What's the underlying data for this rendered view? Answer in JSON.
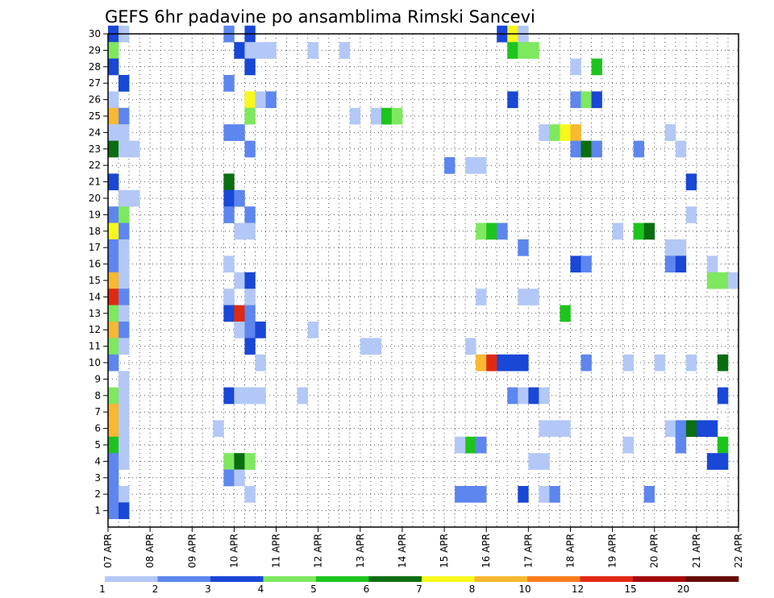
{
  "chart_data": {
    "type": "heatmap",
    "title": "GEFS 6hr padavine po ansamblima Rimski Sancevi",
    "y_ticks": [
      1,
      2,
      3,
      4,
      5,
      6,
      7,
      8,
      9,
      10,
      11,
      12,
      13,
      14,
      15,
      16,
      17,
      18,
      19,
      20,
      21,
      22,
      23,
      24,
      25,
      26,
      27,
      28,
      29,
      30
    ],
    "ylim": [
      0,
      30
    ],
    "x_ticks": [
      {
        "label": "07 APR",
        "day": 0
      },
      {
        "label": "08 APR",
        "day": 1
      },
      {
        "label": "09 APR",
        "day": 2
      },
      {
        "label": "10 APR",
        "day": 3
      },
      {
        "label": "11 APR",
        "day": 4
      },
      {
        "label": "12 APR",
        "day": 5
      },
      {
        "label": "13 APR",
        "day": 6
      },
      {
        "label": "14 APR",
        "day": 7
      },
      {
        "label": "15 APR",
        "day": 8
      },
      {
        "label": "16 APR",
        "day": 9
      },
      {
        "label": "17 APR",
        "day": 10
      },
      {
        "label": "18 APR",
        "day": 11
      },
      {
        "label": "19 APR",
        "day": 12
      },
      {
        "label": "20 APR",
        "day": 13
      },
      {
        "label": "21 APR",
        "day": 14
      },
      {
        "label": "22 APR",
        "day": 15
      }
    ],
    "xlim_days": [
      0,
      15
    ],
    "grid": true,
    "colorbar": {
      "labels": [
        "1",
        "2",
        "3",
        "4",
        "5",
        "6",
        "7",
        "8",
        "10",
        "12",
        "15",
        "20"
      ],
      "colors": [
        "#b3c8f6",
        "#5d86ee",
        "#1947d6",
        "#7ee85f",
        "#1ec41e",
        "#0a6e10",
        "#f8f81c",
        "#f8b830",
        "#f87c1c",
        "#e02a10",
        "#a60a0a",
        "#660808"
      ]
    },
    "cells": [
      [
        30,
        0.0,
        2
      ],
      [
        30,
        0.25,
        0
      ],
      [
        30,
        2.75,
        1
      ],
      [
        30,
        3.25,
        2
      ],
      [
        30,
        9.25,
        2
      ],
      [
        30,
        9.5,
        6
      ],
      [
        30,
        9.75,
        0
      ],
      [
        29,
        0.0,
        3
      ],
      [
        29,
        3.0,
        2
      ],
      [
        29,
        3.25,
        0
      ],
      [
        29,
        3.5,
        0
      ],
      [
        29,
        3.75,
        0
      ],
      [
        29,
        4.75,
        0
      ],
      [
        29,
        5.5,
        0
      ],
      [
        29,
        9.5,
        4
      ],
      [
        29,
        9.75,
        3
      ],
      [
        29,
        10.0,
        3
      ],
      [
        28,
        0.0,
        2
      ],
      [
        28,
        3.25,
        2
      ],
      [
        28,
        11.0,
        0
      ],
      [
        28,
        11.5,
        4
      ],
      [
        27,
        0.25,
        2
      ],
      [
        27,
        2.75,
        1
      ],
      [
        26,
        0.0,
        0
      ],
      [
        26,
        3.25,
        6
      ],
      [
        26,
        3.5,
        0
      ],
      [
        26,
        3.75,
        1
      ],
      [
        26,
        9.5,
        2
      ],
      [
        26,
        11.0,
        1
      ],
      [
        26,
        11.25,
        3
      ],
      [
        26,
        11.5,
        2
      ],
      [
        25,
        0.0,
        7
      ],
      [
        25,
        0.25,
        1
      ],
      [
        25,
        3.25,
        3
      ],
      [
        25,
        5.75,
        0
      ],
      [
        25,
        6.25,
        0
      ],
      [
        25,
        6.5,
        4
      ],
      [
        25,
        6.75,
        3
      ],
      [
        24,
        0.0,
        0
      ],
      [
        24,
        0.25,
        0
      ],
      [
        24,
        2.75,
        1
      ],
      [
        24,
        3.0,
        1
      ],
      [
        24,
        10.25,
        0
      ],
      [
        24,
        10.5,
        3
      ],
      [
        24,
        10.75,
        6
      ],
      [
        24,
        11.0,
        7
      ],
      [
        24,
        13.25,
        0
      ],
      [
        23,
        0.0,
        5
      ],
      [
        23,
        0.25,
        0
      ],
      [
        23,
        0.5,
        0
      ],
      [
        23,
        3.25,
        1
      ],
      [
        23,
        11.0,
        1
      ],
      [
        23,
        11.25,
        5
      ],
      [
        23,
        11.5,
        1
      ],
      [
        23,
        12.5,
        1
      ],
      [
        23,
        13.5,
        0
      ],
      [
        22,
        8.0,
        1
      ],
      [
        22,
        8.5,
        0
      ],
      [
        22,
        8.75,
        0
      ],
      [
        21,
        0.0,
        2
      ],
      [
        21,
        2.75,
        5
      ],
      [
        21,
        13.75,
        2
      ],
      [
        20,
        0.25,
        0
      ],
      [
        20,
        0.5,
        0
      ],
      [
        20,
        2.75,
        2
      ],
      [
        20,
        3.0,
        1
      ],
      [
        19,
        0.0,
        1
      ],
      [
        19,
        0.25,
        3
      ],
      [
        19,
        2.75,
        1
      ],
      [
        19,
        3.25,
        1
      ],
      [
        19,
        13.75,
        0
      ],
      [
        18,
        0.0,
        6
      ],
      [
        18,
        0.25,
        1
      ],
      [
        18,
        3.0,
        0
      ],
      [
        18,
        3.25,
        0
      ],
      [
        18,
        8.75,
        3
      ],
      [
        18,
        9.0,
        4
      ],
      [
        18,
        9.25,
        1
      ],
      [
        18,
        12.0,
        0
      ],
      [
        18,
        12.5,
        4
      ],
      [
        18,
        12.75,
        5
      ],
      [
        17,
        0.0,
        1
      ],
      [
        17,
        0.25,
        0
      ],
      [
        17,
        9.75,
        1
      ],
      [
        17,
        13.25,
        0
      ],
      [
        17,
        13.5,
        0
      ],
      [
        16,
        0.0,
        1
      ],
      [
        16,
        0.25,
        0
      ],
      [
        16,
        2.75,
        0
      ],
      [
        16,
        11.0,
        2
      ],
      [
        16,
        11.25,
        1
      ],
      [
        16,
        13.25,
        1
      ],
      [
        16,
        13.5,
        2
      ],
      [
        16,
        14.25,
        0
      ],
      [
        15,
        0.0,
        7
      ],
      [
        15,
        0.25,
        0
      ],
      [
        15,
        3.0,
        0
      ],
      [
        15,
        3.25,
        2
      ],
      [
        15,
        14.25,
        3
      ],
      [
        15,
        14.5,
        3
      ],
      [
        15,
        14.75,
        0
      ],
      [
        14,
        0.0,
        9
      ],
      [
        14,
        0.25,
        1
      ],
      [
        14,
        2.75,
        0
      ],
      [
        14,
        3.25,
        0
      ],
      [
        14,
        8.75,
        0
      ],
      [
        14,
        9.75,
        0
      ],
      [
        14,
        10.0,
        0
      ],
      [
        13,
        0.0,
        3
      ],
      [
        13,
        0.25,
        0
      ],
      [
        13,
        2.75,
        2
      ],
      [
        13,
        3.0,
        9
      ],
      [
        13,
        3.25,
        1
      ],
      [
        13,
        10.75,
        4
      ],
      [
        12,
        0.0,
        7
      ],
      [
        12,
        0.25,
        1
      ],
      [
        12,
        3.0,
        0
      ],
      [
        12,
        3.25,
        1
      ],
      [
        12,
        3.5,
        2
      ],
      [
        12,
        4.75,
        0
      ],
      [
        11,
        0.0,
        3
      ],
      [
        11,
        0.25,
        0
      ],
      [
        11,
        3.25,
        2
      ],
      [
        11,
        6.0,
        0
      ],
      [
        11,
        6.25,
        0
      ],
      [
        11,
        8.5,
        0
      ],
      [
        10,
        0.0,
        1
      ],
      [
        10,
        3.5,
        0
      ],
      [
        10,
        8.75,
        7
      ],
      [
        10,
        9.0,
        9
      ],
      [
        10,
        9.25,
        2
      ],
      [
        10,
        9.5,
        2
      ],
      [
        10,
        9.75,
        2
      ],
      [
        10,
        11.25,
        1
      ],
      [
        10,
        12.25,
        0
      ],
      [
        10,
        13.0,
        0
      ],
      [
        10,
        13.75,
        0
      ],
      [
        10,
        14.5,
        5
      ],
      [
        9,
        0.25,
        0
      ],
      [
        8,
        0.0,
        3
      ],
      [
        8,
        0.25,
        0
      ],
      [
        8,
        2.75,
        2
      ],
      [
        8,
        3.0,
        0
      ],
      [
        8,
        3.25,
        0
      ],
      [
        8,
        3.5,
        0
      ],
      [
        8,
        4.5,
        0
      ],
      [
        8,
        9.5,
        1
      ],
      [
        8,
        9.75,
        0
      ],
      [
        8,
        10.0,
        2
      ],
      [
        8,
        10.25,
        0
      ],
      [
        8,
        14.5,
        2
      ],
      [
        7,
        0.0,
        7
      ],
      [
        7,
        0.25,
        0
      ],
      [
        6,
        0.0,
        7
      ],
      [
        6,
        0.25,
        0
      ],
      [
        6,
        2.5,
        0
      ],
      [
        6,
        10.25,
        0
      ],
      [
        6,
        10.5,
        0
      ],
      [
        6,
        10.75,
        0
      ],
      [
        6,
        13.25,
        0
      ],
      [
        6,
        13.5,
        1
      ],
      [
        6,
        13.75,
        5
      ],
      [
        6,
        14.0,
        2
      ],
      [
        6,
        14.25,
        2
      ],
      [
        5,
        0.0,
        4
      ],
      [
        5,
        0.25,
        0
      ],
      [
        5,
        8.25,
        0
      ],
      [
        5,
        8.5,
        4
      ],
      [
        5,
        8.75,
        1
      ],
      [
        5,
        12.25,
        0
      ],
      [
        5,
        13.5,
        1
      ],
      [
        5,
        14.5,
        4
      ],
      [
        4,
        0.0,
        1
      ],
      [
        4,
        0.25,
        0
      ],
      [
        4,
        2.75,
        3
      ],
      [
        4,
        3.0,
        5
      ],
      [
        4,
        3.25,
        3
      ],
      [
        4,
        10.0,
        0
      ],
      [
        4,
        10.25,
        0
      ],
      [
        4,
        14.25,
        2
      ],
      [
        4,
        14.5,
        2
      ],
      [
        3,
        0.0,
        1
      ],
      [
        3,
        2.75,
        1
      ],
      [
        3,
        3.0,
        0
      ],
      [
        2,
        0.0,
        1
      ],
      [
        2,
        0.25,
        0
      ],
      [
        2,
        3.25,
        0
      ],
      [
        2,
        8.25,
        1
      ],
      [
        2,
        8.5,
        1
      ],
      [
        2,
        8.75,
        1
      ],
      [
        2,
        9.75,
        2
      ],
      [
        2,
        10.25,
        0
      ],
      [
        2,
        10.5,
        1
      ],
      [
        2,
        12.75,
        1
      ],
      [
        1,
        0.0,
        1
      ],
      [
        1,
        0.25,
        2
      ]
    ]
  }
}
